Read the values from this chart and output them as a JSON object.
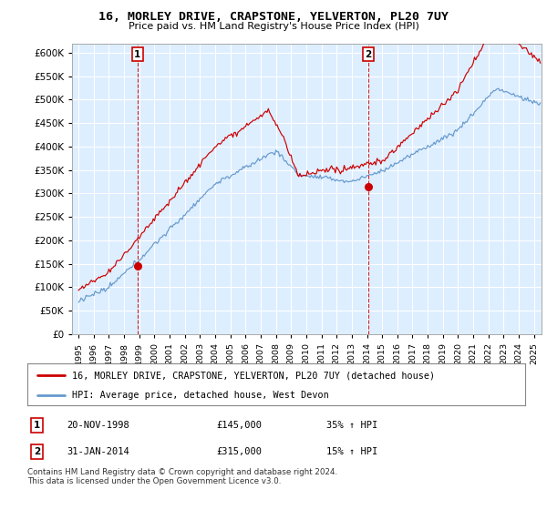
{
  "title": "16, MORLEY DRIVE, CRAPSTONE, YELVERTON, PL20 7UY",
  "subtitle": "Price paid vs. HM Land Registry's House Price Index (HPI)",
  "red_line_label": "16, MORLEY DRIVE, CRAPSTONE, YELVERTON, PL20 7UY (detached house)",
  "blue_line_label": "HPI: Average price, detached house, West Devon",
  "sale1_date": "20-NOV-1998",
  "sale1_price": "£145,000",
  "sale1_hpi": "35% ↑ HPI",
  "sale2_date": "31-JAN-2014",
  "sale2_price": "£315,000",
  "sale2_hpi": "15% ↑ HPI",
  "footnote": "Contains HM Land Registry data © Crown copyright and database right 2024.\nThis data is licensed under the Open Government Licence v3.0.",
  "red_color": "#cc0000",
  "blue_color": "#6699cc",
  "chart_bg": "#ddeeff",
  "ylim": [
    0,
    620000
  ],
  "yticks": [
    0,
    50000,
    100000,
    150000,
    200000,
    250000,
    300000,
    350000,
    400000,
    450000,
    500000,
    550000,
    600000
  ],
  "background_color": "#ffffff",
  "grid_color": "#ffffff",
  "sale1_year": 1998.88,
  "sale1_value": 145000,
  "sale2_year": 2014.08,
  "sale2_value": 315000
}
